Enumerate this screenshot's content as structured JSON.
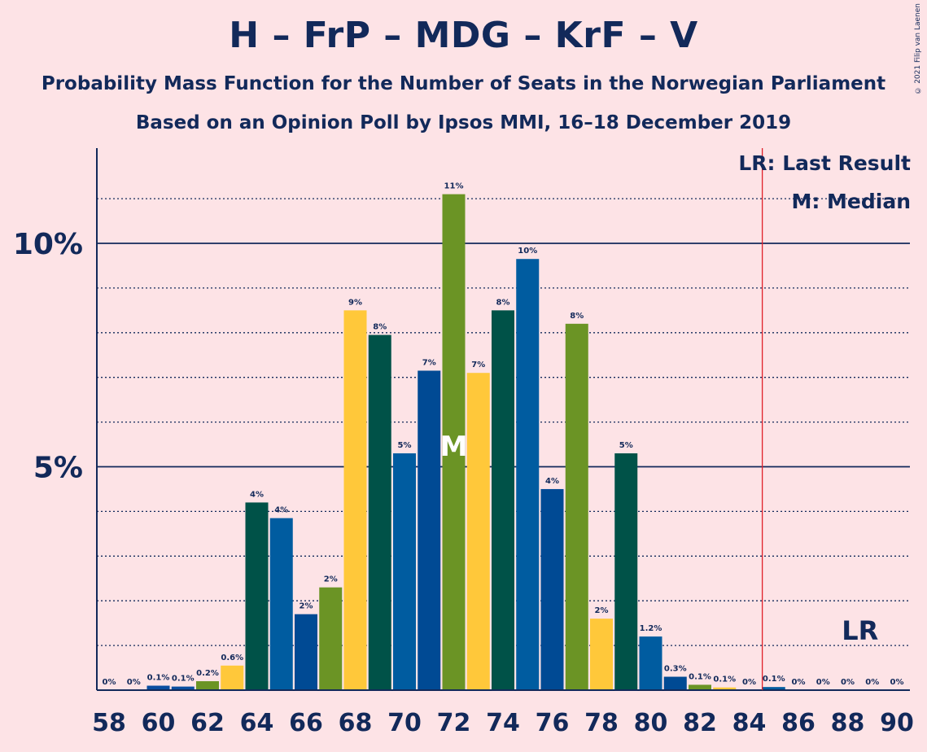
{
  "header": {
    "title": "H – FrP – MDG – KrF – V",
    "subtitle_1": "Probability Mass Function for the Number of Seats in the Norwegian Parliament",
    "subtitle_2": "Based on an Opinion Poll by Ipsos MMI, 16–18 December 2019",
    "copyright": "© 2021 Filip van Laenen"
  },
  "legend": {
    "lr": "LR: Last Result",
    "m": "M: Median"
  },
  "chart_data": {
    "type": "bar",
    "x": [
      58,
      59,
      60,
      61,
      62,
      63,
      64,
      65,
      66,
      67,
      68,
      69,
      70,
      71,
      72,
      73,
      74,
      75,
      76,
      77,
      78,
      79,
      80,
      81,
      82,
      83,
      84,
      85,
      86,
      87,
      88,
      89,
      90
    ],
    "values": [
      0.0,
      0.0,
      0.1,
      0.08,
      0.2,
      0.55,
      4.2,
      3.85,
      1.7,
      2.3,
      8.5,
      7.95,
      5.3,
      7.15,
      11.1,
      7.1,
      8.5,
      9.65,
      4.5,
      8.2,
      1.6,
      5.3,
      1.2,
      0.3,
      0.12,
      0.06,
      0.0,
      0.07,
      0.0,
      0.0,
      0.0,
      0.0,
      0.0
    ],
    "labels": [
      "0%",
      "0%",
      "0.1%",
      "0.1%",
      "0.2%",
      "0.6%",
      "4%",
      "4%",
      "2%",
      "2%",
      "9%",
      "8%",
      "5%",
      "7%",
      "11%",
      "7%",
      "8%",
      "10%",
      "4%",
      "8%",
      "2%",
      "5%",
      "1.2%",
      "0.3%",
      "0.1%",
      "0.1%",
      "0%",
      "0.1%",
      "0%",
      "0%",
      "0%",
      "0%",
      "0%"
    ],
    "bar_colors": [
      "#0A4EA0",
      "#0A4EA0",
      "#0A4EA0",
      "#0A4EA0",
      "#6B9425",
      "#FFC83A",
      "#005248",
      "#005CA0",
      "#004A94",
      "#6B9425",
      "#FFC83A",
      "#005248",
      "#005CA0",
      "#004A94",
      "#6B9425",
      "#FFC83A",
      "#005248",
      "#005CA0",
      "#004A94",
      "#6B9425",
      "#FFC83A",
      "#005248",
      "#005CA0",
      "#004A94",
      "#6B9425",
      "#FFC83A",
      "#005248",
      "#005CA0",
      "#004A94",
      "#6B9425",
      "#FFC83A",
      "#005248",
      "#005CA0"
    ],
    "x_tick_labels": [
      "58",
      "60",
      "62",
      "64",
      "66",
      "68",
      "70",
      "72",
      "74",
      "76",
      "78",
      "80",
      "82",
      "84",
      "86",
      "88",
      "90"
    ],
    "y_tick_labels": [
      "5%",
      "10%"
    ],
    "ylim": [
      0,
      12
    ],
    "y_solid_lines": [
      5,
      10
    ],
    "y_dotted_lines": [
      1,
      2,
      3,
      4,
      6,
      7,
      8,
      9,
      11
    ],
    "median_seat": 72,
    "median_marker": "M",
    "last_result_seat": 89,
    "last_result_marker": "LR",
    "majority_line_seat": 85,
    "colors": {
      "axis": "#12295A",
      "majority_line": "#E0202A",
      "median_marker": "#FFFFFF"
    }
  }
}
